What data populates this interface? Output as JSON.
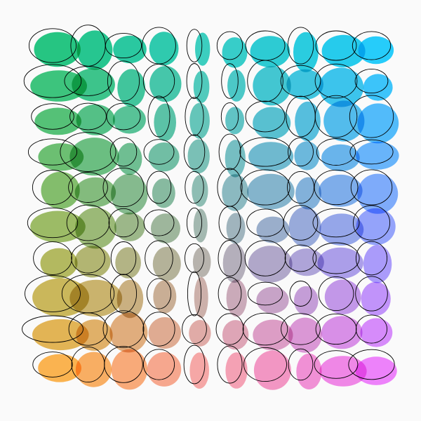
{
  "colors": {
    "background": "#fafafa",
    "top_left": "#00c070",
    "top_right": "#00c8ff",
    "bottom_left": "#ffaa33",
    "bottom_right": "#f070ff",
    "outline": "#000000"
  },
  "grid": {
    "rows": 10,
    "cols": 10
  }
}
